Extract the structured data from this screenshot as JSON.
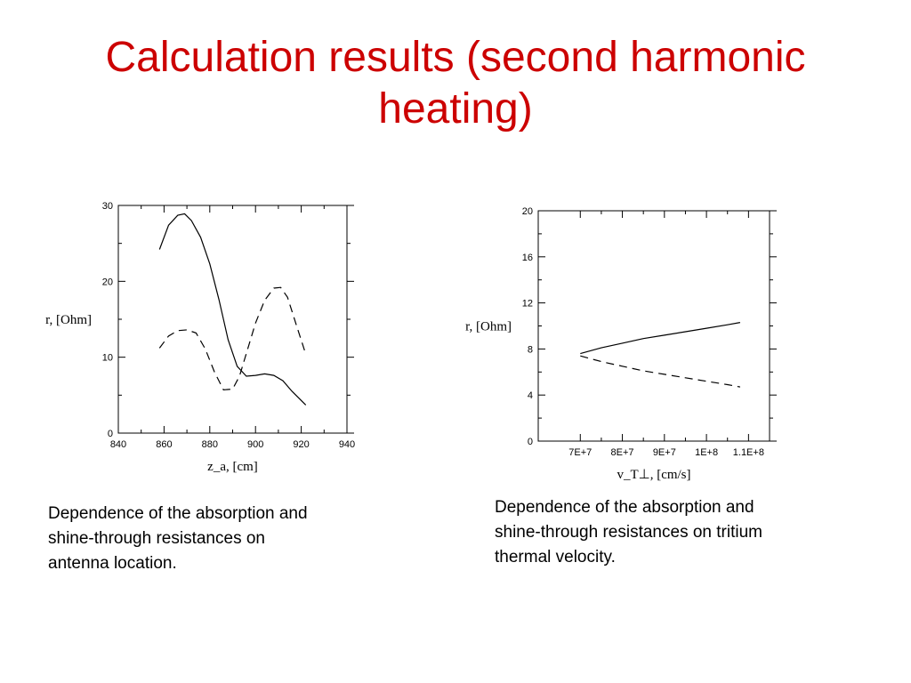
{
  "slide": {
    "title_lines": [
      "Calculation results (second harmonic",
      "heating)"
    ]
  },
  "colors": {
    "title": "#cc0000",
    "ink": "#000000"
  },
  "chart_data": [
    {
      "type": "line",
      "title": "",
      "xlabel": "z_a, [cm]",
      "ylabel": "r, [Ohm]",
      "xlim": [
        840,
        940
      ],
      "ylim": [
        0,
        30
      ],
      "x_ticks": [
        840,
        860,
        880,
        900,
        920,
        940
      ],
      "x_tick_labels": [
        "840",
        "860",
        "880",
        "900",
        "920",
        "940"
      ],
      "y_ticks": [
        0,
        10,
        20,
        30
      ],
      "y_tick_labels": [
        "0",
        "10",
        "20",
        "30"
      ],
      "grid": false,
      "series": [
        {
          "style": "solid",
          "x": [
            858,
            862,
            866,
            869,
            872,
            876,
            880,
            884,
            888,
            892,
            896,
            900,
            904,
            908,
            912,
            916,
            922
          ],
          "y": [
            24.2,
            27.4,
            28.7,
            28.9,
            28.0,
            25.8,
            22.3,
            17.6,
            12.3,
            8.8,
            7.5,
            7.6,
            7.8,
            7.6,
            6.9,
            5.5,
            3.7
          ]
        },
        {
          "style": "dashed",
          "x": [
            858,
            862,
            866,
            870,
            874,
            878,
            882,
            886,
            890,
            893,
            896,
            900,
            904,
            908,
            911,
            914,
            918,
            922
          ],
          "y": [
            11.2,
            12.8,
            13.5,
            13.6,
            13.2,
            11.1,
            8.1,
            5.7,
            5.8,
            7.5,
            10.5,
            14.5,
            17.5,
            19.1,
            19.2,
            17.9,
            14.1,
            10.4
          ]
        }
      ]
    },
    {
      "type": "line",
      "title": "",
      "xlabel": "v_T⊥, [cm/s]",
      "ylabel": "r, [Ohm]",
      "xlim": [
        60000000,
        115000000
      ],
      "ylim": [
        0,
        20
      ],
      "x_ticks": [
        70000000,
        80000000,
        90000000,
        100000000,
        110000000
      ],
      "x_tick_labels": [
        "7E+7",
        "8E+7",
        "9E+7",
        "1E+8",
        "1.1E+8"
      ],
      "y_ticks": [
        0,
        4,
        8,
        12,
        16,
        20
      ],
      "y_tick_labels": [
        "0",
        "4",
        "8",
        "12",
        "16",
        "20"
      ],
      "grid": false,
      "series": [
        {
          "style": "solid",
          "x": [
            70000000,
            75000000,
            80000000,
            85000000,
            90000000,
            95000000,
            100000000,
            105000000,
            108000000
          ],
          "y": [
            7.6,
            8.1,
            8.5,
            8.9,
            9.2,
            9.5,
            9.8,
            10.1,
            10.3
          ]
        },
        {
          "style": "dashed",
          "x": [
            70000000,
            75000000,
            80000000,
            85000000,
            90000000,
            95000000,
            100000000,
            105000000,
            108000000
          ],
          "y": [
            7.4,
            6.9,
            6.5,
            6.1,
            5.8,
            5.5,
            5.2,
            4.9,
            4.7
          ]
        }
      ]
    }
  ],
  "captions": {
    "left": [
      "Dependence of the absorption and",
      "shine-through resistances on",
      "antenna location."
    ],
    "right": [
      "Dependence of the absorption and",
      "shine-through resistances on tritium",
      "thermal velocity."
    ]
  }
}
